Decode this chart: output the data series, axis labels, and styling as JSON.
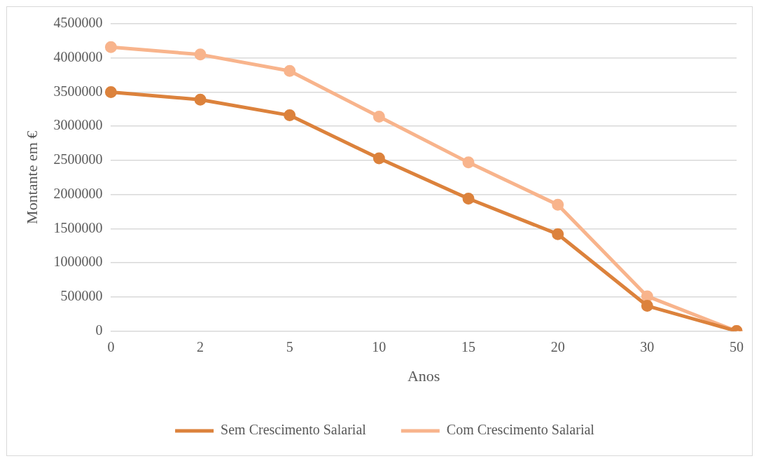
{
  "chart_data": {
    "type": "line",
    "xlabel": "Anos",
    "ylabel": "Montante em €",
    "categories": [
      "0",
      "2",
      "5",
      "10",
      "15",
      "20",
      "30",
      "50"
    ],
    "series": [
      {
        "name": "Sem Crescimento Salarial",
        "color": "#dc823c",
        "values": [
          3500000,
          3390000,
          3160000,
          2530000,
          1940000,
          1420000,
          370000,
          0
        ]
      },
      {
        "name": "Com Crescimento Salarial",
        "color": "#f8b48c",
        "values": [
          4160000,
          4050000,
          3810000,
          3140000,
          2470000,
          1850000,
          510000,
          0
        ]
      }
    ],
    "ylim": [
      0,
      4500000
    ],
    "yticks": [
      0,
      500000,
      1000000,
      1500000,
      2000000,
      2500000,
      3000000,
      3500000,
      4000000,
      4500000
    ],
    "grid": "y",
    "legend": "bottom",
    "marker": "circle",
    "line_style": "solid"
  }
}
